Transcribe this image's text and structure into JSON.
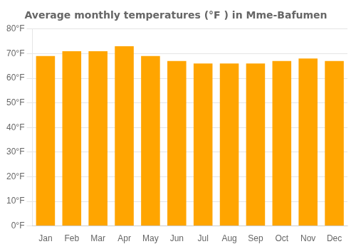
{
  "chart_data": {
    "type": "bar",
    "title": "Average monthly temperatures (°F ) in Mme-Bafumen",
    "categories": [
      "Jan",
      "Feb",
      "Mar",
      "Apr",
      "May",
      "Jun",
      "Jul",
      "Aug",
      "Sep",
      "Oct",
      "Nov",
      "Dec"
    ],
    "values": [
      69,
      71,
      71,
      73,
      69,
      67,
      66,
      66,
      66,
      67,
      68,
      67
    ],
    "color": "#FFA500",
    "ylim": [
      0,
      80
    ],
    "yticks": [
      {
        "value": 0,
        "label": "0°F"
      },
      {
        "value": 10,
        "label": "10°F"
      },
      {
        "value": 20,
        "label": "20°F"
      },
      {
        "value": 30,
        "label": "30°F"
      },
      {
        "value": 40,
        "label": "40°F"
      },
      {
        "value": 50,
        "label": "50°F"
      },
      {
        "value": 60,
        "label": "60°F"
      },
      {
        "value": 70,
        "label": "70°F"
      },
      {
        "value": 80,
        "label": "80°F"
      }
    ],
    "grid": true
  }
}
